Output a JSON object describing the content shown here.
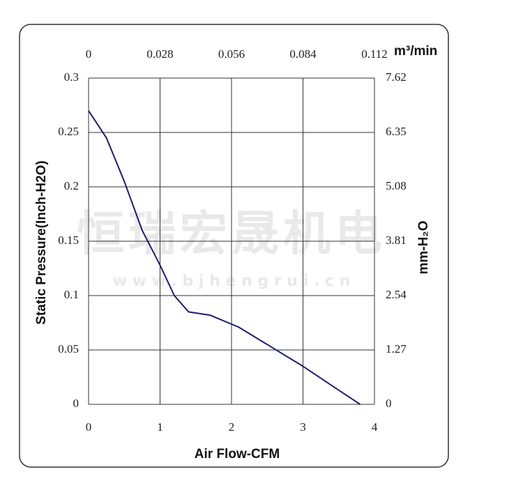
{
  "chart_data": {
    "type": "line",
    "xlabel": "Air Flow-CFM",
    "ylabel": "Static Pressure(Inch-H2O)",
    "x2label": "m³/min",
    "y2label": "mm-H₂O",
    "watermark": "恒瑞宏晟机电",
    "watermark_url": "w w w . b j h e n g r u i . c n",
    "x": [
      0,
      0.25,
      0.5,
      0.75,
      1.0,
      1.2,
      1.4,
      1.7,
      2.1,
      2.5,
      3.0,
      3.5,
      3.8
    ],
    "values": [
      0.27,
      0.245,
      0.205,
      0.16,
      0.128,
      0.1,
      0.085,
      0.082,
      0.071,
      0.055,
      0.035,
      0.013,
      0
    ],
    "color": "#1c1c72",
    "xlim": [
      0,
      4
    ],
    "xticks": [
      0,
      1,
      2,
      3,
      4
    ],
    "ylim": [
      0,
      0.3
    ],
    "yticks": [
      0,
      0.05,
      0.1,
      0.15,
      0.2,
      0.25,
      0.3
    ],
    "x2lim": [
      0,
      0.112
    ],
    "x2ticks": [
      0,
      0.028,
      0.056,
      0.084,
      0.112
    ],
    "y2lim": [
      0,
      7.62
    ],
    "y2ticks": [
      0,
      1.27,
      2.54,
      3.81,
      5.08,
      6.35,
      7.62
    ],
    "grid": true
  }
}
